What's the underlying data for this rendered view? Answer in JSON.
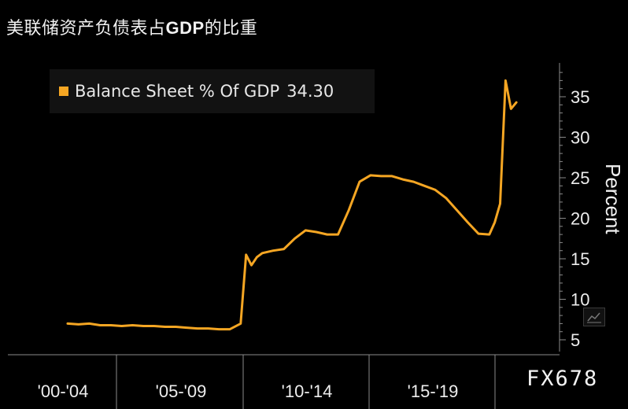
{
  "title_text": "美联储资产负债表占",
  "title_bold": "GDP",
  "title_suffix": "的比重",
  "legend": {
    "label": "Balance Sheet % Of GDP",
    "value": "34.30",
    "color": "#f5a623"
  },
  "watermark": "FX678",
  "colors": {
    "line": "#f5a623",
    "axis": "#8a8a8a",
    "background": "#000000"
  },
  "chart_data": {
    "type": "line",
    "title": "美联储资产负债表占GDP的比重",
    "ylabel": "Percent",
    "xlabel": "",
    "ylim": [
      5,
      38
    ],
    "yticks": [
      5,
      10,
      15,
      20,
      25,
      30,
      35
    ],
    "x_ticklabels": [
      "'00-'04",
      "'05-'09",
      "'10-'14",
      "'15-'19"
    ],
    "xlim": [
      2000.0,
      2021.0
    ],
    "grid": false,
    "legend_position": "top-left",
    "series": [
      {
        "name": "Balance Sheet % Of GDP",
        "x": [
          2000.0,
          2000.5,
          2001.0,
          2001.5,
          2002.0,
          2002.5,
          2003.0,
          2003.5,
          2004.0,
          2004.5,
          2005.0,
          2005.5,
          2006.0,
          2006.5,
          2007.0,
          2007.5,
          2008.0,
          2008.25,
          2008.5,
          2008.75,
          2009.0,
          2009.5,
          2010.0,
          2010.5,
          2011.0,
          2011.5,
          2012.0,
          2012.5,
          2013.0,
          2013.5,
          2014.0,
          2014.5,
          2015.0,
          2015.5,
          2016.0,
          2016.5,
          2017.0,
          2017.5,
          2018.0,
          2018.5,
          2019.0,
          2019.5,
          2019.75,
          2020.0,
          2020.25,
          2020.5,
          2020.75
        ],
        "values": [
          7.0,
          6.9,
          7.0,
          6.8,
          6.8,
          6.7,
          6.8,
          6.7,
          6.7,
          6.6,
          6.6,
          6.5,
          6.4,
          6.4,
          6.3,
          6.3,
          7.0,
          15.5,
          14.2,
          15.2,
          15.7,
          16.0,
          16.2,
          17.5,
          18.5,
          18.3,
          18.0,
          18.0,
          21.0,
          24.5,
          25.3,
          25.2,
          25.2,
          24.8,
          24.5,
          24.0,
          23.5,
          22.5,
          21.0,
          19.5,
          18.1,
          18.0,
          19.5,
          21.8,
          37.0,
          33.5,
          34.3
        ]
      }
    ]
  }
}
